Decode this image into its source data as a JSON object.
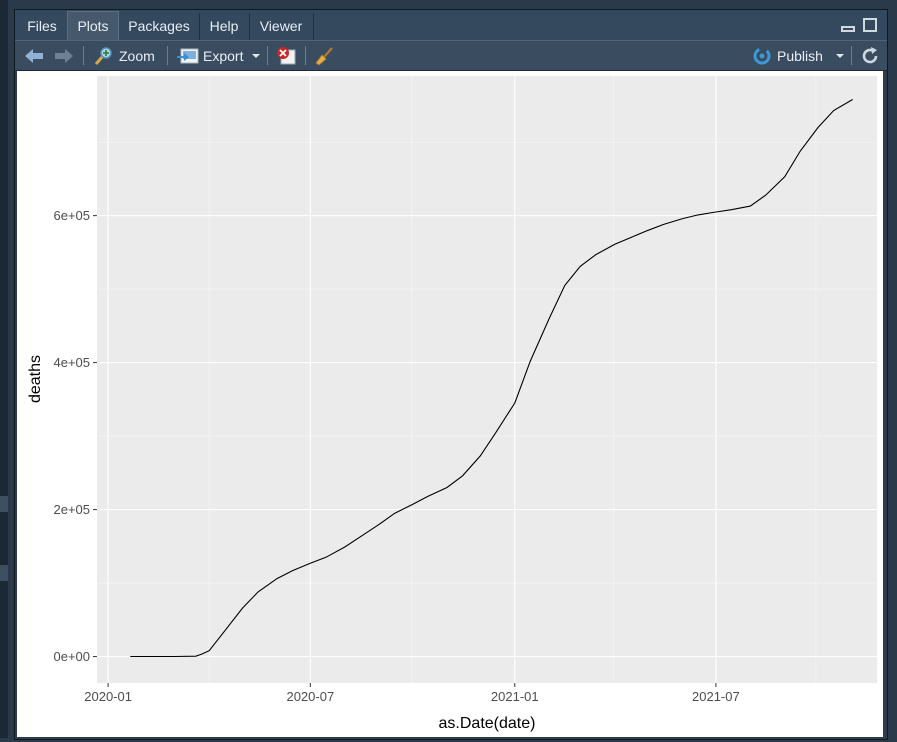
{
  "tabs": [
    {
      "label": "Files",
      "active": false
    },
    {
      "label": "Plots",
      "active": true
    },
    {
      "label": "Packages",
      "active": false
    },
    {
      "label": "Help",
      "active": false
    },
    {
      "label": "Viewer",
      "active": false
    }
  ],
  "toolbar": {
    "zoom_label": "Zoom",
    "export_label": "Export",
    "publish_label": "Publish",
    "icons": [
      "back-arrow-icon",
      "forward-arrow-icon",
      "zoom-icon",
      "export-icon",
      "remove-plot-icon",
      "broom-icon",
      "publish-icon",
      "refresh-icon"
    ]
  },
  "colors": {
    "panel_bg": "#ebebeb",
    "grid": "#ffffff",
    "line": "#000000",
    "accent_publish": "#3d9ad8"
  },
  "chart_data": {
    "type": "line",
    "xlabel": "as.Date(date)",
    "ylabel": "deaths",
    "x_ticks": [
      "2020-01",
      "2020-07",
      "2021-01",
      "2021-07"
    ],
    "y_ticks": [
      "0e+00",
      "2e+05",
      "4e+05",
      "6e+05"
    ],
    "xlim": [
      "2019-12-22",
      "2021-11-23"
    ],
    "ylim": [
      -36000,
      790000
    ],
    "grid": true,
    "series": [
      {
        "x": [
          "2020-01-21",
          "2020-02-15",
          "2020-03-01",
          "2020-03-20",
          "2020-03-25",
          "2020-04-01",
          "2020-04-15",
          "2020-05-01",
          "2020-05-15",
          "2020-06-01",
          "2020-06-15",
          "2020-07-01",
          "2020-07-15",
          "2020-08-01",
          "2020-08-15",
          "2020-09-01",
          "2020-09-15",
          "2020-10-01",
          "2020-10-15",
          "2020-11-01",
          "2020-11-15",
          "2020-12-01",
          "2020-12-15",
          "2021-01-01",
          "2021-01-15",
          "2021-02-01",
          "2021-02-15",
          "2021-03-01",
          "2021-03-15",
          "2021-04-01",
          "2021-04-15",
          "2021-05-01",
          "2021-05-15",
          "2021-06-01",
          "2021-06-15",
          "2021-07-01",
          "2021-07-15",
          "2021-08-01",
          "2021-08-15",
          "2021-09-01",
          "2021-09-15",
          "2021-10-01",
          "2021-10-15",
          "2021-11-01"
        ],
        "y": [
          0,
          0,
          0,
          500,
          3000,
          8000,
          35000,
          66000,
          88000,
          106000,
          117000,
          127000,
          135000,
          149000,
          163000,
          180000,
          195000,
          207000,
          218000,
          230000,
          246000,
          273000,
          305000,
          345000,
          402000,
          460000,
          505000,
          531000,
          547000,
          561000,
          570000,
          580000,
          588000,
          596000,
          601000,
          605000,
          608000,
          613000,
          628000,
          653000,
          688000,
          720000,
          743000,
          758000
        ]
      }
    ]
  }
}
